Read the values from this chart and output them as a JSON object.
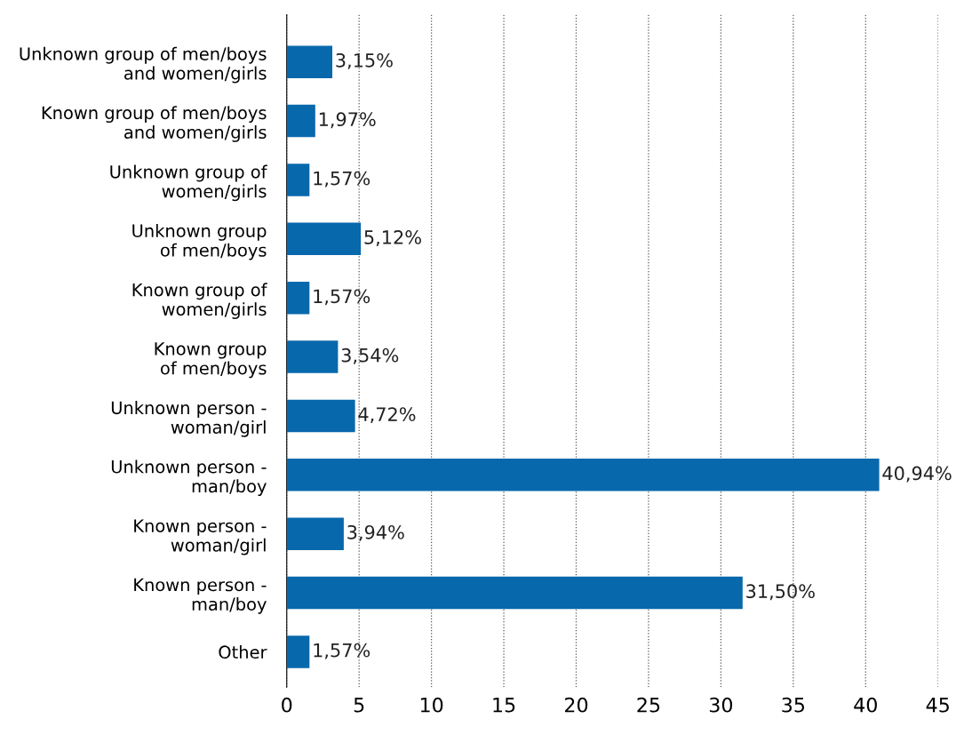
{
  "chart_data": {
    "type": "bar",
    "orientation": "horizontal",
    "categories": [
      "Unknown group of men/boys\nand women/girls",
      "Known group of men/boys\nand women/girls",
      "Unknown group of\nwomen/girls",
      "Unknown group\nof men/boys",
      "Known group of\nwomen/girls",
      "Known group\nof men/boys",
      "Unknown person -\nwoman/girl",
      "Unknown person -\nman/boy",
      "Known person -\nwoman/girl",
      "Known person -\nman/boy",
      "Other"
    ],
    "values": [
      3.15,
      1.97,
      1.57,
      5.12,
      1.57,
      3.54,
      4.72,
      40.94,
      3.94,
      31.5,
      1.57
    ],
    "value_labels": [
      "3,15%",
      "1,97%",
      "1,57%",
      "5,12%",
      "1,57%",
      "3,54%",
      "4,72%",
      "40,94%",
      "3,94%",
      "31,50%",
      "1,57%"
    ],
    "color": "#0868ac",
    "xlim": [
      0,
      45
    ],
    "xticks": [
      0,
      5,
      10,
      15,
      20,
      25,
      30,
      35,
      40,
      45
    ],
    "grid": "x",
    "legend": false
  }
}
